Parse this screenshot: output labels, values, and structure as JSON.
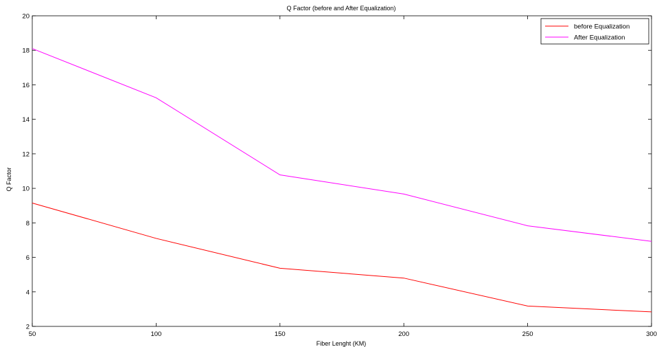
{
  "chart_data": {
    "type": "line",
    "title": "Q Factor (before and After Equalization)",
    "xlabel": "Fiber Lenght (KM)",
    "ylabel": "Q Factor",
    "x": [
      50,
      100,
      150,
      200,
      250,
      300
    ],
    "xlim": [
      50,
      300
    ],
    "ylim": [
      2,
      20
    ],
    "xticks": [
      50,
      100,
      150,
      200,
      250,
      300
    ],
    "yticks": [
      2,
      4,
      6,
      8,
      10,
      12,
      14,
      16,
      18,
      20
    ],
    "grid": false,
    "legend_position": "top-right",
    "series": [
      {
        "name": "before Equalization",
        "color": "#ff0000",
        "values": [
          9.15,
          7.1,
          5.37,
          4.8,
          3.18,
          2.84
        ]
      },
      {
        "name": "After Equalization",
        "color": "#ff00ff",
        "values": [
          18.1,
          15.25,
          10.78,
          9.67,
          7.83,
          6.93
        ]
      }
    ]
  }
}
